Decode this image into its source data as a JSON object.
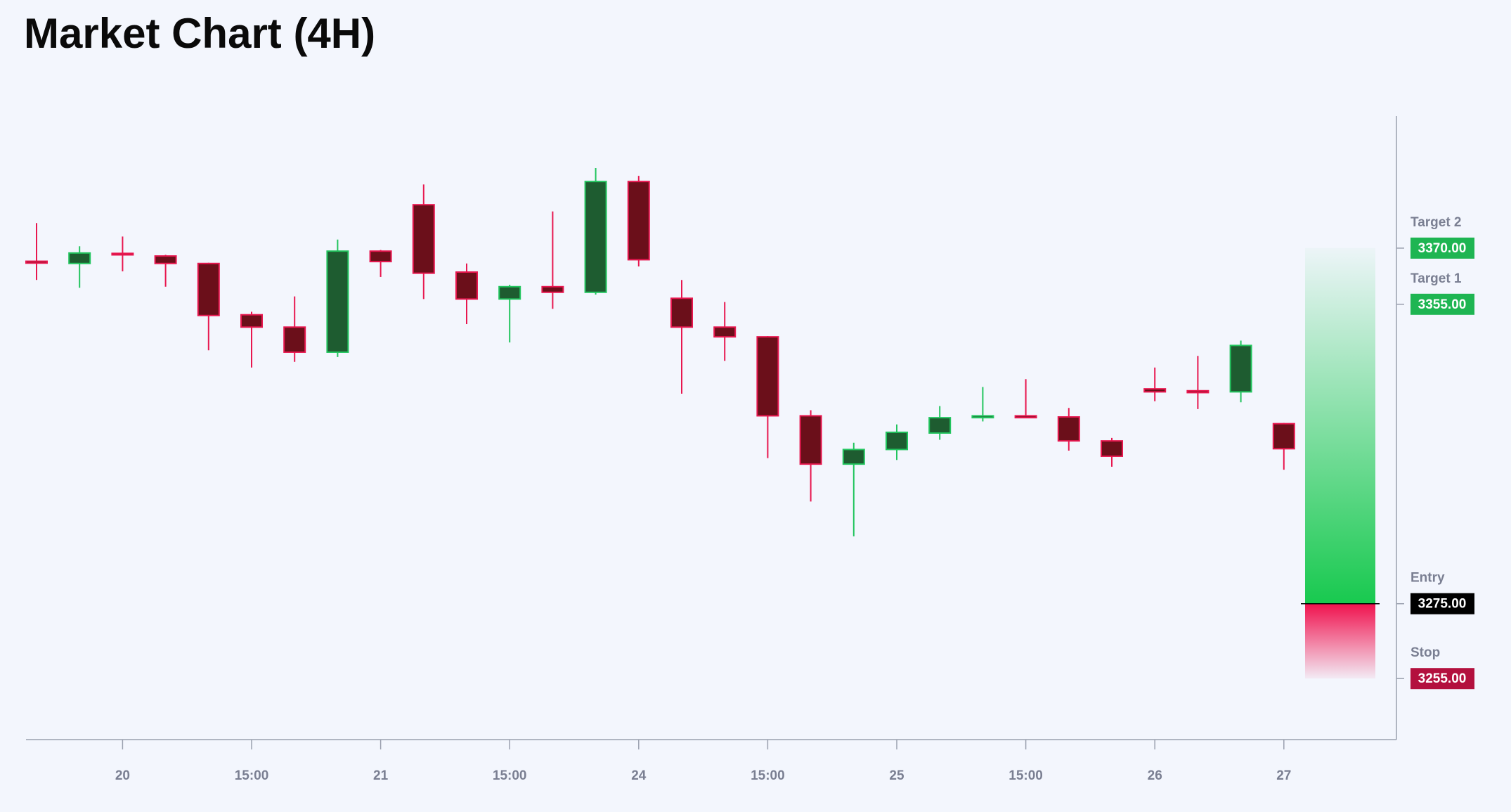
{
  "chart_data": {
    "type": "candlestick",
    "title": "Market Chart (4H)",
    "categories": [
      null,
      null,
      "20",
      null,
      null,
      "15:00",
      null,
      null,
      "21",
      null,
      null,
      "15:00",
      null,
      null,
      "24",
      null,
      null,
      "15:00",
      null,
      null,
      "25",
      null,
      null,
      "15:00",
      null,
      null,
      "26",
      null,
      null,
      "27"
    ],
    "open": [
      3366.5,
      3365.9,
      3368.6,
      3367.9,
      3365.9,
      3352.2,
      3348.9,
      3342.2,
      3369.2,
      3381.6,
      3363.6,
      3356.4,
      3359.7,
      3358.2,
      3387.8,
      3356.6,
      3348.9,
      3346.3,
      3325.2,
      3312.3,
      3316.2,
      3320.6,
      3324.7,
      3325.2,
      3324.9,
      3318.5,
      3332.4,
      3331.9,
      3331.6,
      3323.1
    ],
    "high": [
      3376.7,
      3370.5,
      3373.1,
      3368.2,
      3366.1,
      3353.0,
      3357.1,
      3372.3,
      3369.5,
      3387.0,
      3365.9,
      3360.2,
      3379.8,
      3391.4,
      3389.3,
      3361.5,
      3355.6,
      3346.5,
      3326.7,
      3318.0,
      3322.9,
      3327.8,
      3332.9,
      3335.0,
      3327.3,
      3319.3,
      3338.1,
      3341.2,
      3345.3,
      3323.3
    ],
    "low": [
      3361.5,
      3359.4,
      3363.8,
      3359.7,
      3342.7,
      3338.1,
      3339.6,
      3340.9,
      3362.3,
      3356.4,
      3349.7,
      3344.8,
      3353.8,
      3357.6,
      3365.1,
      3331.1,
      3339.9,
      3313.9,
      3302.3,
      3293.0,
      3313.4,
      3318.8,
      3323.7,
      3324.6,
      3315.9,
      3311.6,
      3329.1,
      3327.0,
      3328.8,
      3310.8
    ],
    "close": [
      3366.0,
      3368.7,
      3368.2,
      3365.9,
      3352.0,
      3348.9,
      3342.2,
      3369.2,
      3366.4,
      3363.3,
      3356.4,
      3359.7,
      3358.2,
      3387.8,
      3366.9,
      3348.9,
      3346.3,
      3325.2,
      3312.3,
      3316.2,
      3320.8,
      3324.7,
      3325.2,
      3324.7,
      3318.5,
      3314.4,
      3331.6,
      3331.4,
      3344.0,
      3316.4
    ],
    "up_color": "#22c55e",
    "up_fill": "#1e5c30",
    "down_color": "#e8174f",
    "down_fill": "#6b0f1a",
    "ylim": [
      3238.7,
      3405.3
    ],
    "levels": [
      {
        "name": "Target 2",
        "value": 3370,
        "label": "3370.00",
        "color": "#1eb552"
      },
      {
        "name": "Target 1",
        "value": 3355,
        "label": "3355.00",
        "color": "#1eb552"
      },
      {
        "name": "Entry",
        "value": 3275,
        "label": "3275.00",
        "color": "#000000"
      },
      {
        "name": "Stop",
        "value": 3255,
        "label": "3255.00",
        "color": "#b3103e"
      }
    ]
  }
}
